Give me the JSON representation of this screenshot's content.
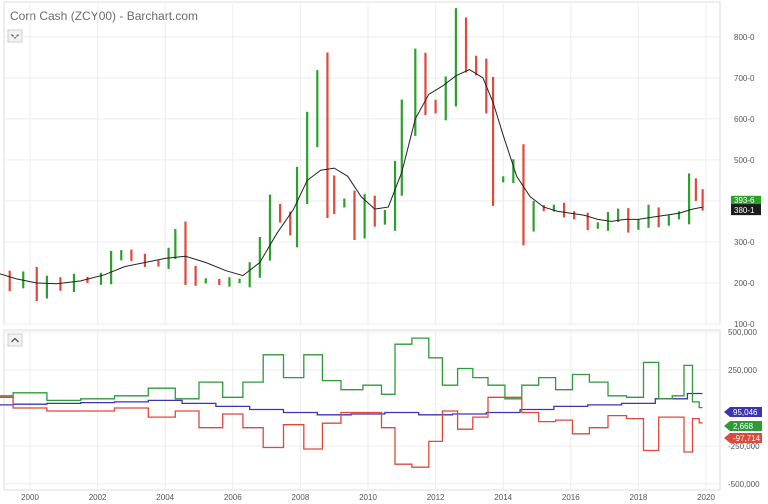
{
  "header": {
    "title": "Corn Cash (ZCY00) - Barchart.com",
    "collapse_icon_upper": "chevron-down-icon",
    "collapse_icon_lower": "chevron-up-icon"
  },
  "colors": {
    "up": "#2ca02c",
    "down": "#e0483a",
    "ma": "#222222",
    "series_blue": "#3b35b3",
    "series_green": "#2f9a3a",
    "series_red": "#e0483a",
    "grid": "#ececec"
  },
  "chart_data": [
    {
      "type": "candlestick",
      "title": "Corn Cash (ZCY00) - Barchart.com",
      "xlabel": "",
      "ylabel": "",
      "x_ticks": [
        "2000",
        "2002",
        "2004",
        "2006",
        "2008",
        "2010",
        "2012",
        "2014",
        "2016",
        "2018",
        "2020"
      ],
      "y_ticks": [
        "100-0",
        "200-0",
        "300-0",
        "400-0",
        "500-0",
        "600-0",
        "700-0",
        "800-0"
      ],
      "ylim": [
        100,
        880
      ],
      "grid": true,
      "last_labels": [
        "393-6",
        "380-1"
      ],
      "series": [
        {
          "name": "price",
          "points": [
            [
              1999.0,
              215
            ],
            [
              1999.4,
              195
            ],
            [
              1999.8,
              220
            ],
            [
              2000.2,
              175
            ],
            [
              2000.5,
              205
            ],
            [
              2000.9,
              190
            ],
            [
              2001.3,
              210
            ],
            [
              2001.7,
              205
            ],
            [
              2002.1,
              215
            ],
            [
              2002.4,
              260
            ],
            [
              2002.7,
              275
            ],
            [
              2003.0,
              260
            ],
            [
              2003.4,
              250
            ],
            [
              2003.8,
              245
            ],
            [
              2004.1,
              275
            ],
            [
              2004.3,
              315
            ],
            [
              2004.6,
              230
            ],
            [
              2004.9,
              205
            ],
            [
              2005.2,
              205
            ],
            [
              2005.6,
              200
            ],
            [
              2005.9,
              205
            ],
            [
              2006.2,
              205
            ],
            [
              2006.5,
              235
            ],
            [
              2006.8,
              290
            ],
            [
              2007.1,
              380
            ],
            [
              2007.4,
              360
            ],
            [
              2007.7,
              330
            ],
            [
              2007.9,
              440
            ],
            [
              2008.2,
              570
            ],
            [
              2008.5,
              680
            ],
            [
              2008.8,
              440
            ],
            [
              2009.0,
              390
            ],
            [
              2009.3,
              400
            ],
            [
              2009.6,
              330
            ],
            [
              2009.9,
              395
            ],
            [
              2010.2,
              355
            ],
            [
              2010.5,
              365
            ],
            [
              2010.8,
              460
            ],
            [
              2011.0,
              600
            ],
            [
              2011.4,
              730
            ],
            [
              2011.7,
              640
            ],
            [
              2012.0,
              620
            ],
            [
              2012.3,
              680
            ],
            [
              2012.6,
              820
            ],
            [
              2012.9,
              740
            ],
            [
              2013.2,
              720
            ],
            [
              2013.5,
              640
            ],
            [
              2013.7,
              450
            ],
            [
              2014.0,
              455
            ],
            [
              2014.3,
              490
            ],
            [
              2014.6,
              340
            ],
            [
              2014.9,
              385
            ],
            [
              2015.2,
              380
            ],
            [
              2015.5,
              385
            ],
            [
              2015.8,
              370
            ],
            [
              2016.1,
              360
            ],
            [
              2016.5,
              340
            ],
            [
              2016.8,
              340
            ],
            [
              2017.1,
              360
            ],
            [
              2017.4,
              370
            ],
            [
              2017.7,
              335
            ],
            [
              2018.0,
              350
            ],
            [
              2018.3,
              375
            ],
            [
              2018.6,
              345
            ],
            [
              2018.9,
              360
            ],
            [
              2019.2,
              370
            ],
            [
              2019.5,
              440
            ],
            [
              2019.7,
              415
            ],
            [
              2019.9,
              390
            ]
          ]
        },
        {
          "name": "moving average",
          "points": [
            [
              1999.0,
              225
            ],
            [
              1999.6,
              210
            ],
            [
              2000.2,
              200
            ],
            [
              2000.8,
              198
            ],
            [
              2001.5,
              205
            ],
            [
              2002.2,
              220
            ],
            [
              2002.8,
              240
            ],
            [
              2003.4,
              250
            ],
            [
              2004.0,
              260
            ],
            [
              2004.6,
              265
            ],
            [
              2005.2,
              250
            ],
            [
              2005.8,
              230
            ],
            [
              2006.3,
              218
            ],
            [
              2006.8,
              250
            ],
            [
              2007.3,
              320
            ],
            [
              2007.8,
              380
            ],
            [
              2008.2,
              450
            ],
            [
              2008.6,
              475
            ],
            [
              2009.0,
              480
            ],
            [
              2009.4,
              460
            ],
            [
              2009.8,
              410
            ],
            [
              2010.2,
              380
            ],
            [
              2010.6,
              385
            ],
            [
              2011.0,
              470
            ],
            [
              2011.4,
              600
            ],
            [
              2011.8,
              660
            ],
            [
              2012.2,
              680
            ],
            [
              2012.6,
              705
            ],
            [
              2013.0,
              720
            ],
            [
              2013.4,
              700
            ],
            [
              2013.7,
              640
            ],
            [
              2014.0,
              560
            ],
            [
              2014.4,
              460
            ],
            [
              2014.8,
              410
            ],
            [
              2015.2,
              385
            ],
            [
              2015.6,
              375
            ],
            [
              2016.0,
              370
            ],
            [
              2016.4,
              365
            ],
            [
              2016.8,
              355
            ],
            [
              2017.2,
              350
            ],
            [
              2017.6,
              355
            ],
            [
              2018.0,
              355
            ],
            [
              2018.4,
              360
            ],
            [
              2018.8,
              365
            ],
            [
              2019.2,
              370
            ],
            [
              2019.6,
              380
            ],
            [
              2019.9,
              385
            ]
          ]
        }
      ]
    },
    {
      "type": "line",
      "y_ticks": [
        "500,000",
        "250,000",
        "-250,000",
        "-500,000"
      ],
      "ylim": [
        -540000,
        500000
      ],
      "grid": true,
      "series": [
        {
          "name": "",
          "color_key": "series_blue",
          "last_label": "95,046",
          "points": [
            [
              1999.0,
              20000
            ],
            [
              2000.0,
              25000
            ],
            [
              2001.0,
              30000
            ],
            [
              2002.0,
              35000
            ],
            [
              2003.0,
              40000
            ],
            [
              2004.0,
              50000
            ],
            [
              2005.0,
              30000
            ],
            [
              2006.0,
              10000
            ],
            [
              2007.0,
              -10000
            ],
            [
              2008.0,
              -30000
            ],
            [
              2009.0,
              -45000
            ],
            [
              2010.0,
              -40000
            ],
            [
              2011.0,
              -30000
            ],
            [
              2012.0,
              -45000
            ],
            [
              2013.0,
              -40000
            ],
            [
              2014.0,
              -30000
            ],
            [
              2015.0,
              -10000
            ],
            [
              2016.0,
              10000
            ],
            [
              2017.0,
              20000
            ],
            [
              2018.0,
              30000
            ],
            [
              2019.0,
              60000
            ],
            [
              2019.9,
              95046
            ]
          ]
        },
        {
          "name": "",
          "color_key": "series_green",
          "last_label": "2,668",
          "points": [
            [
              1999.0,
              70000
            ],
            [
              2000.0,
              100000
            ],
            [
              2001.0,
              50000
            ],
            [
              2002.0,
              60000
            ],
            [
              2003.0,
              80000
            ],
            [
              2004.0,
              130000
            ],
            [
              2004.6,
              60000
            ],
            [
              2005.4,
              170000
            ],
            [
              2006.0,
              70000
            ],
            [
              2006.6,
              170000
            ],
            [
              2007.2,
              350000
            ],
            [
              2007.8,
              200000
            ],
            [
              2008.4,
              350000
            ],
            [
              2008.9,
              180000
            ],
            [
              2009.5,
              120000
            ],
            [
              2010.2,
              150000
            ],
            [
              2010.6,
              90000
            ],
            [
              2011.0,
              420000
            ],
            [
              2011.6,
              460000
            ],
            [
              2012.0,
              330000
            ],
            [
              2012.4,
              150000
            ],
            [
              2012.9,
              260000
            ],
            [
              2013.3,
              200000
            ],
            [
              2013.8,
              150000
            ],
            [
              2014.3,
              60000
            ],
            [
              2014.8,
              150000
            ],
            [
              2015.3,
              200000
            ],
            [
              2015.8,
              120000
            ],
            [
              2016.3,
              220000
            ],
            [
              2016.8,
              170000
            ],
            [
              2017.4,
              80000
            ],
            [
              2017.9,
              70000
            ],
            [
              2018.4,
              300000
            ],
            [
              2018.8,
              60000
            ],
            [
              2019.2,
              80000
            ],
            [
              2019.5,
              280000
            ],
            [
              2019.7,
              40000
            ],
            [
              2019.9,
              2668
            ]
          ]
        },
        {
          "name": "",
          "color_key": "series_red",
          "last_label": "-97,714",
          "points": [
            [
              1999.0,
              80000
            ],
            [
              2000.0,
              0
            ],
            [
              2001.0,
              -20000
            ],
            [
              2002.0,
              -20000
            ],
            [
              2003.0,
              0
            ],
            [
              2004.0,
              -60000
            ],
            [
              2004.6,
              -20000
            ],
            [
              2005.4,
              -130000
            ],
            [
              2006.0,
              -40000
            ],
            [
              2006.6,
              -130000
            ],
            [
              2007.2,
              -260000
            ],
            [
              2007.8,
              -110000
            ],
            [
              2008.4,
              -270000
            ],
            [
              2008.9,
              -100000
            ],
            [
              2009.5,
              -30000
            ],
            [
              2010.2,
              -30000
            ],
            [
              2010.6,
              -130000
            ],
            [
              2011.0,
              -370000
            ],
            [
              2011.6,
              -390000
            ],
            [
              2012.0,
              -220000
            ],
            [
              2012.4,
              -20000
            ],
            [
              2012.9,
              -140000
            ],
            [
              2013.3,
              -60000
            ],
            [
              2013.8,
              70000
            ],
            [
              2014.3,
              70000
            ],
            [
              2014.8,
              -30000
            ],
            [
              2015.3,
              -90000
            ],
            [
              2015.8,
              -80000
            ],
            [
              2016.3,
              -170000
            ],
            [
              2016.8,
              -130000
            ],
            [
              2017.4,
              -50000
            ],
            [
              2017.9,
              -70000
            ],
            [
              2018.4,
              -280000
            ],
            [
              2018.8,
              -60000
            ],
            [
              2019.2,
              -60000
            ],
            [
              2019.5,
              -290000
            ],
            [
              2019.7,
              -70000
            ],
            [
              2019.9,
              -97714
            ]
          ]
        }
      ]
    }
  ]
}
